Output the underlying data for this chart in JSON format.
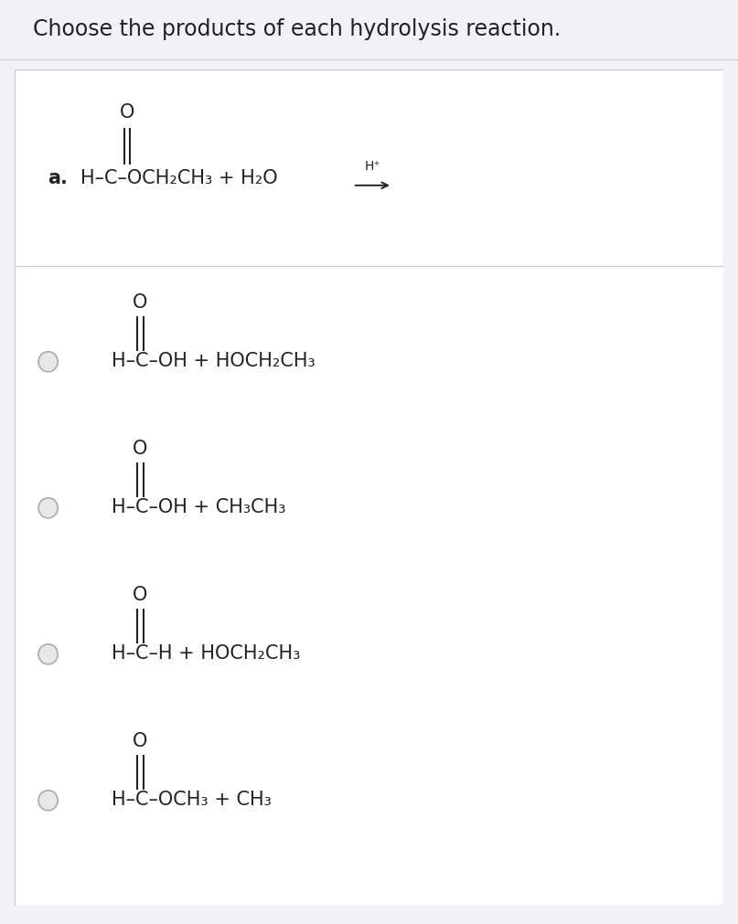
{
  "title": "Choose the products of each hydrolysis reaction.",
  "outer_bg": "#f0f2f5",
  "title_bg": "#ffffff",
  "panel_bg": "#ffffff",
  "border_color": "#c8cdd6",
  "text_color": "#222222",
  "radio_face": "#e8e8e8",
  "radio_edge": "#b0b0b0",
  "title_fontsize": 17,
  "formula_fontsize": 15,
  "option_fontsize": 15,
  "question_label": "a.",
  "q_formula": "H–C–OCH₂CH₃ + H₂O",
  "q_O_above": true,
  "q_arrow_label": "H⁺",
  "options": [
    "H–C–OH + HOCH₂CH₃",
    "H–C–OH + CH₃CH₃",
    "H–C–H + HOCH₂CH₃",
    "H–C–OCH₃ + CH₃"
  ]
}
